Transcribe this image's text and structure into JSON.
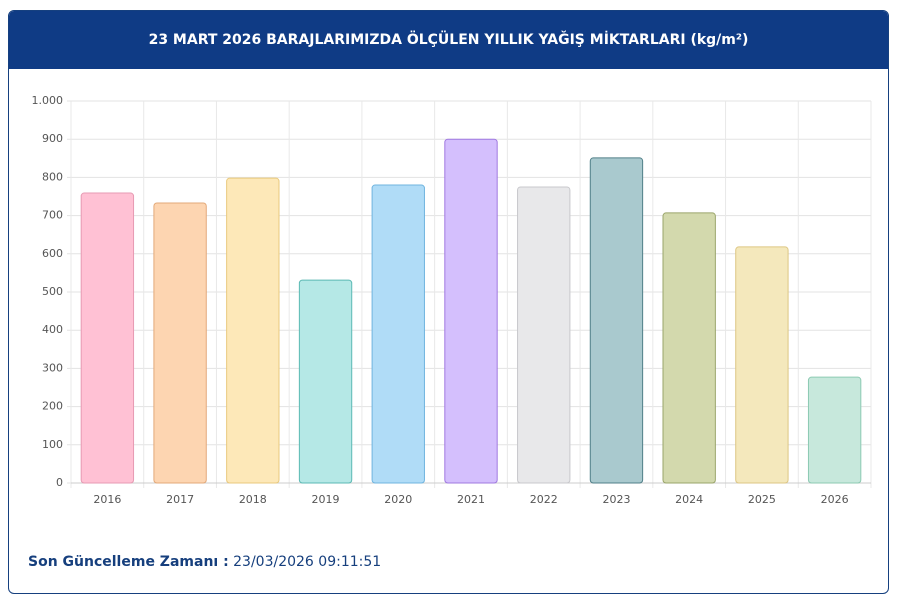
{
  "chart_data": {
    "type": "bar",
    "title": "23 MART 2026 BARAJLARIMIZDA ÖLÇÜLEN YILLIK YAĞIŞ MİKTARLARI (kg/m²)",
    "categories": [
      "2016",
      "2017",
      "2018",
      "2019",
      "2020",
      "2021",
      "2022",
      "2023",
      "2024",
      "2025",
      "2026"
    ],
    "values": [
      759,
      733,
      798,
      531,
      780,
      900,
      775,
      851,
      707,
      618,
      277
    ],
    "colors": [
      "#ffc1d4",
      "#fdd5b1",
      "#fde8b8",
      "#b5e8e6",
      "#b0dcf7",
      "#d4bffd",
      "#e8e8ea",
      "#a9c9ce",
      "#d3d9ad",
      "#f4e8bc",
      "#c7e8dc"
    ],
    "border_colors": [
      "#e79ab3",
      "#e3a979",
      "#e9c97c",
      "#5bb9b4",
      "#6fb4df",
      "#9f78e0",
      "#c8c8cc",
      "#507f88",
      "#9aa56a",
      "#ddc683",
      "#8ccab2"
    ],
    "ylim": [
      0,
      1000
    ],
    "yticks": [
      0,
      100,
      200,
      300,
      400,
      500,
      600,
      700,
      800,
      900,
      {
        "value": 1000,
        "label": "1.000"
      }
    ],
    "grid": true
  },
  "footer": {
    "label": "Son Güncelleme Zamanı :",
    "value": "23/03/2026 09:11:51"
  }
}
